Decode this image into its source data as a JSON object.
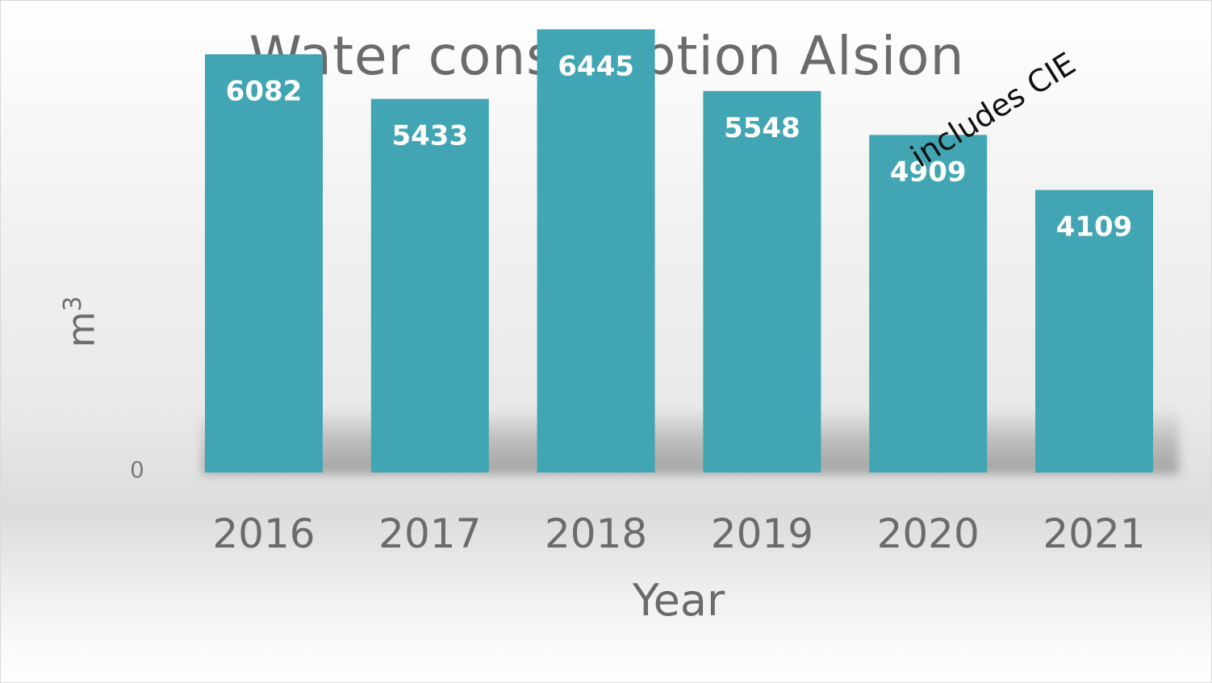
{
  "chart_data": {
    "type": "bar",
    "title": "Water consumption Alsion",
    "xlabel": "Year",
    "ylabel_base": "m",
    "ylabel_sup": "3",
    "categories": [
      "2016",
      "2017",
      "2018",
      "2019",
      "2020",
      "2021"
    ],
    "values": [
      6082,
      5433,
      6445,
      5548,
      4909,
      4109
    ],
    "ylim": [
      0,
      6860
    ],
    "y_tick_labels": [
      "0"
    ],
    "grid": false,
    "bar_color": "#41a5b3",
    "annotations": [
      {
        "text": "includes CIE",
        "category": "2020"
      }
    ]
  }
}
